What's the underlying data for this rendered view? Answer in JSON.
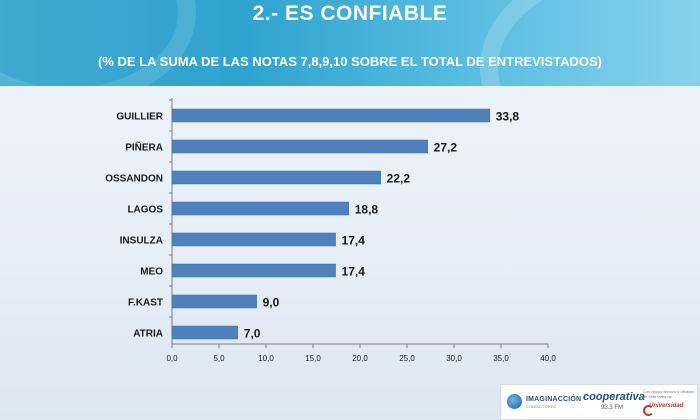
{
  "header": {
    "title": "2.-  ES CONFIABLE",
    "subtitle": "(% DE LA SUMA DE LAS NOTAS 7,8,9,10 SOBRE EL TOTAL DE ENTREVISTADOS)"
  },
  "chart_data": {
    "type": "bar",
    "orientation": "horizontal",
    "categories": [
      "GUILLIER",
      "PIÑERA",
      "OSSANDON",
      "LAGOS",
      "INSULZA",
      "MEO",
      "F.KAST",
      "ATRIA"
    ],
    "values": [
      33.8,
      27.2,
      22.2,
      18.8,
      17.4,
      17.4,
      9.0,
      7.0
    ],
    "value_labels": [
      "33,8",
      "27,2",
      "22,2",
      "18,8",
      "17,4",
      "17,4",
      "9,0",
      "7,0"
    ],
    "xlim": [
      0,
      40
    ],
    "x_ticks": [
      0,
      5,
      10,
      15,
      20,
      25,
      30,
      35,
      40
    ],
    "x_tick_labels": [
      "0,0",
      "5,0",
      "10,0",
      "15,0",
      "20,0",
      "25,0",
      "30,0",
      "35,0",
      "40,0"
    ],
    "grid": false,
    "bar_color": "#4f81bd"
  },
  "footer": {
    "logo1_name": "IMAGINACCIÓN",
    "logo1_sub": "CONSULTORES",
    "logo2_name": "cooperativa",
    "logo2_sub": "93.3 FM",
    "logo3_lines": [
      "Con apoyo técnico y difusión",
      "de esta tarea de"
    ],
    "logo3_name": "Universidad"
  }
}
